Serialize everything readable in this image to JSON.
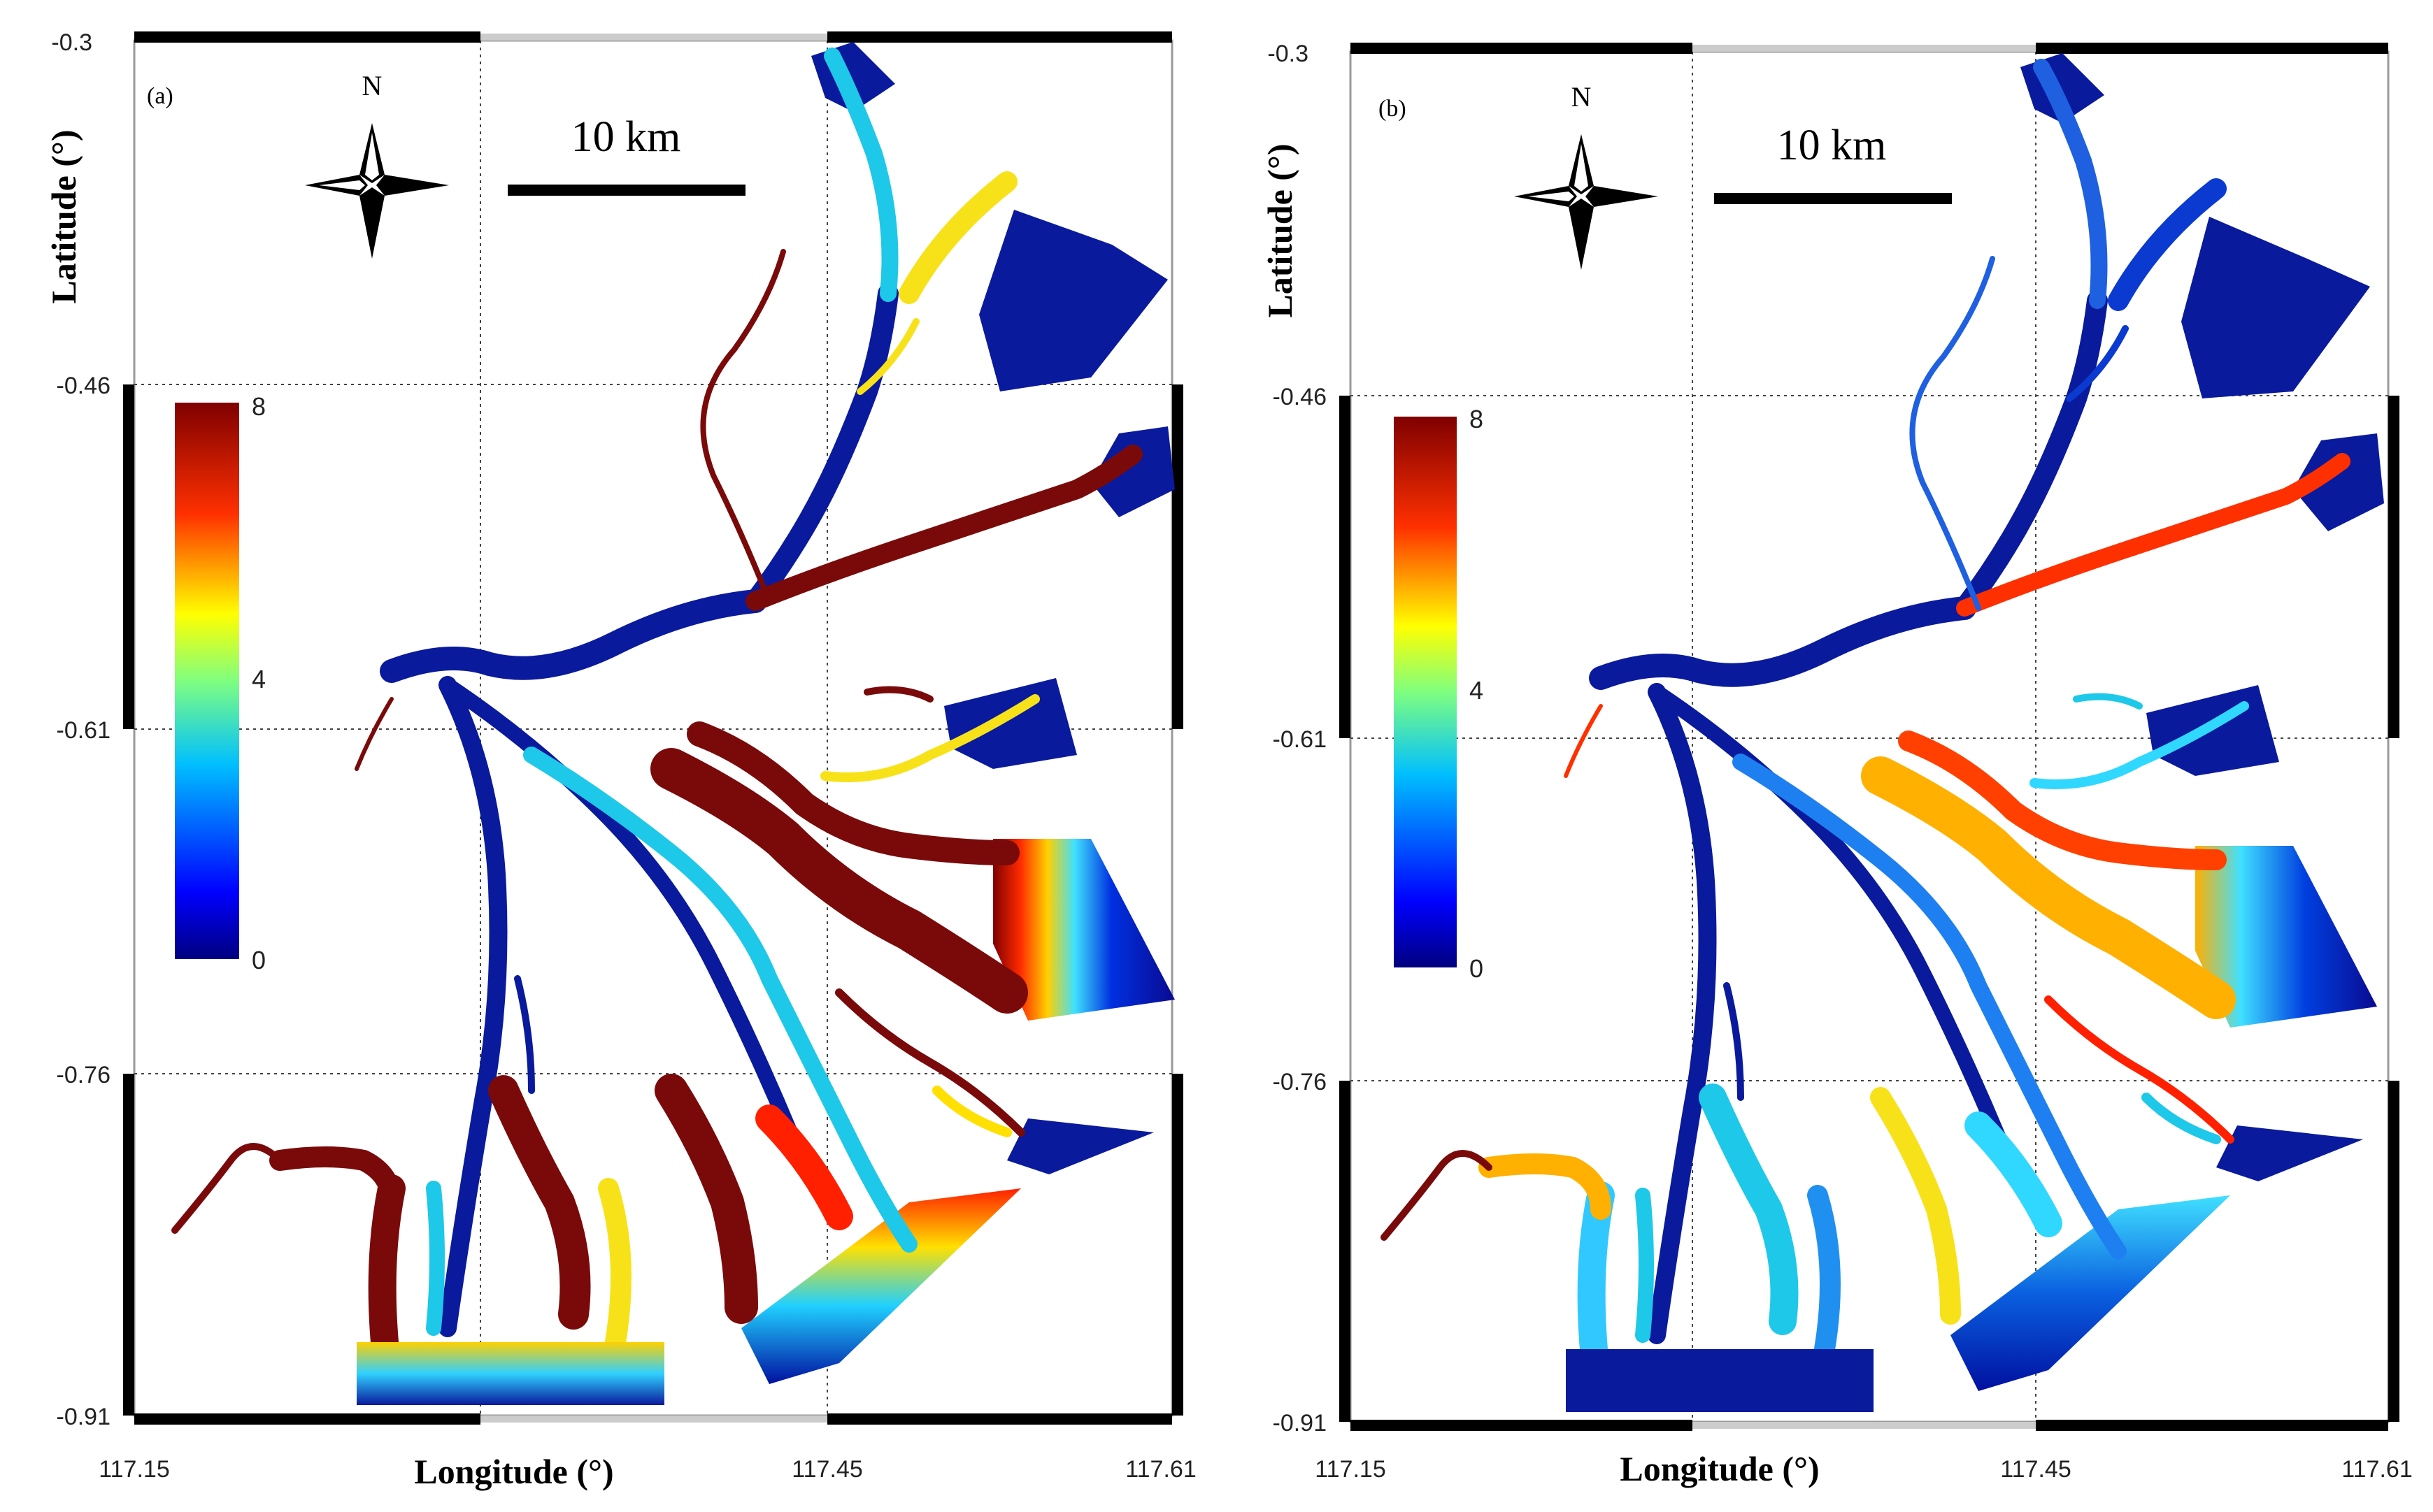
{
  "figure": {
    "panels": [
      {
        "id": "a",
        "label": "(a)",
        "north_label": "N",
        "scale_label": "10 km",
        "x_axis_title": "Longitude (°)",
        "y_axis_title": "Latitude (°)",
        "x_ticks": [
          "117.15",
          "117.45",
          "117.61"
        ],
        "y_ticks": [
          "-0.3",
          "-0.46",
          "-0.61",
          "-0.76",
          "-0.91"
        ],
        "colorbar": {
          "max_label": "8",
          "mid_label": "4",
          "min_label": "0",
          "min": 0,
          "max": 8,
          "colormap": "jet"
        }
      },
      {
        "id": "b",
        "label": "(b)",
        "north_label": "N",
        "scale_label": "10 km",
        "x_axis_title": "Longitude (°)",
        "y_axis_title": "Latitude (°)",
        "x_ticks": [
          "117.15",
          "117.45",
          "117.61"
        ],
        "y_ticks": [
          "-0.3",
          "-0.46",
          "-0.61",
          "-0.76",
          "-0.91"
        ],
        "colorbar": {
          "max_label": "8",
          "mid_label": "4",
          "min_label": "0",
          "min": 0,
          "max": 8,
          "colormap": "jet"
        }
      }
    ],
    "colors": {
      "water_low": "#0a1a9c",
      "water_mid": "#1ec8e8",
      "water_high": "#f7e21a",
      "water_max": "#7a0a0a",
      "frame": "#000000",
      "grid": "#555555"
    }
  }
}
